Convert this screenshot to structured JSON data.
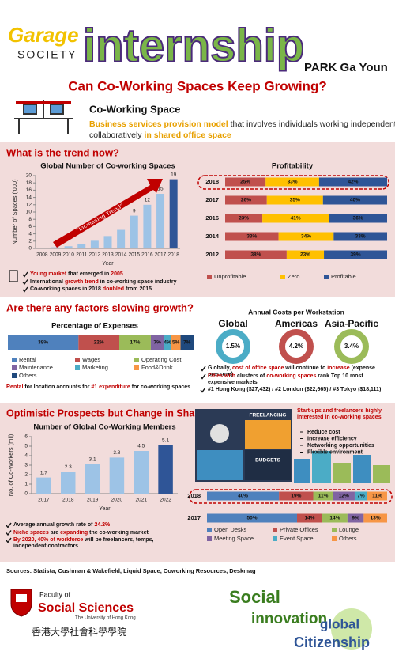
{
  "header": {
    "logo_top": "Garage",
    "logo_bottom": "SOCIETY",
    "program": "internship",
    "author": "PARK Ga Youn",
    "title": "Can Co-Working Spaces Keep Growing?"
  },
  "definition": {
    "term": "Co-Working Space",
    "parts": [
      "Business services provision model",
      " that involves individuals working independently or",
      "collaboratively ",
      "in shared office space"
    ]
  },
  "sections": [
    {
      "heading": "What is the trend now?",
      "notes": [
        [
          "Young market",
          " that emerged in ",
          "2005"
        ],
        [
          "International ",
          "growth trend",
          " in co-working space industry"
        ],
        [
          "Co-working spaces in 2018 ",
          "doubled",
          " from 2015"
        ]
      ]
    },
    {
      "heading": "Are there any factors slowing growth?",
      "note": [
        "Rental",
        " for location accounts for ",
        "#1 expenditure",
        " for co-working spaces"
      ],
      "bullets": [
        [
          "Globally, ",
          "cost of office space",
          " will continue to ",
          "increase",
          " (expense pressure)"
        ],
        [
          "Cities with",
          " clusters of ",
          "co-working spaces",
          " rank Top 10 most expensive markets"
        ],
        [
          "#1 Hong Kong ($27,432) / #2 London ($22,665) / #3 Tokyo ($18,111)"
        ]
      ]
    },
    {
      "heading": "Optimistic Prospects but Change in Shape",
      "notes": [
        [
          "Average annual growth rate of ",
          "24.2%"
        ],
        [
          "Niche spaces",
          " are ",
          "expanding",
          " the co-working market"
        ],
        [
          "By 2020, 40% of workforce",
          " will be freelancers, temps, independent contractors"
        ]
      ],
      "image_labels": [
        "FREELANCING",
        "BUDGETS"
      ],
      "interest": "Start-ups and freelancers highly interested in co-working spaces",
      "reasons": [
        "Reduce cost",
        "Increase efficiency",
        "Networking opportunities",
        "Flexible environment"
      ]
    }
  ],
  "chart_data": [
    {
      "type": "bar",
      "title": "Global Number of Co-working Spaces",
      "x_label": "Year",
      "y_label": "Number of Spaces ('000)",
      "annotation": "\"Increasing Trend\"",
      "categories": [
        "2008",
        "2009",
        "2010",
        "2011",
        "2012",
        "2013",
        "2014",
        "2015",
        "2016",
        "2017",
        "2018"
      ],
      "values": [
        0.16,
        0.3,
        0.6,
        1.1,
        2.1,
        3.4,
        5.1,
        9,
        12,
        15,
        19
      ],
      "value_labels": [
        null,
        null,
        null,
        null,
        null,
        null,
        null,
        "9",
        "12",
        "15",
        "19"
      ],
      "colors": [
        "#9dc3e6",
        "#9dc3e6",
        "#9dc3e6",
        "#9dc3e6",
        "#9dc3e6",
        "#9dc3e6",
        "#9dc3e6",
        "#9dc3e6",
        "#9dc3e6",
        "#9dc3e6",
        "#2f5597"
      ],
      "ylim": [
        0,
        20
      ],
      "yticks": [
        0,
        2,
        4,
        6,
        8,
        10,
        12,
        14,
        16,
        18,
        20
      ]
    },
    {
      "type": "stacked_bar",
      "title": "Profitability",
      "categories": [
        "2018",
        "2017",
        "2016",
        "2014",
        "2012"
      ],
      "series": [
        {
          "name": "Unprofitable",
          "color": "#c0504d",
          "values": [
            25,
            26,
            23,
            33,
            38
          ],
          "value_labels": [
            "25%",
            "26%",
            "23%",
            "33%",
            "38%"
          ]
        },
        {
          "name": "Zero",
          "color": "#ffc000",
          "values": [
            33,
            35,
            41,
            34,
            23
          ],
          "value_labels": [
            "33%",
            "35%",
            "41%",
            "34%",
            "23%"
          ]
        },
        {
          "name": "Profitable",
          "color": "#2f5597",
          "values": [
            42,
            40,
            36,
            33,
            39
          ],
          "value_labels": [
            "42%",
            "40%",
            "36%",
            "33%",
            "39%"
          ]
        }
      ]
    },
    {
      "type": "stacked_bar",
      "title": "Percentage of Expenses",
      "series": [
        {
          "name": "Rental",
          "color": "#4f81bd",
          "values": [
            38
          ],
          "value_labels": [
            "38%"
          ]
        },
        {
          "name": "Wages",
          "color": "#c0504d",
          "values": [
            22
          ],
          "value_labels": [
            "22%"
          ]
        },
        {
          "name": "Operating Cost",
          "color": "#9bbb59",
          "values": [
            17
          ],
          "value_labels": [
            "17%"
          ]
        },
        {
          "name": "Maintenance",
          "color": "#8064a2",
          "values": [
            7
          ],
          "value_labels": [
            "7%"
          ]
        },
        {
          "name": "Marketing",
          "color": "#4bacc6",
          "values": [
            4
          ],
          "value_labels": [
            "4%"
          ]
        },
        {
          "name": "Food&Drink",
          "color": "#f79646",
          "values": [
            5
          ],
          "value_labels": [
            "5%"
          ]
        },
        {
          "name": "Others",
          "color": "#1f497d",
          "values": [
            7
          ],
          "value_labels": [
            "7%"
          ]
        }
      ]
    },
    {
      "type": "donut",
      "title": "Annual Costs per Workstation",
      "categories": [
        "Global",
        "Americas",
        "Asia-Pacific"
      ],
      "values": [
        1.5,
        4.2,
        3.4
      ],
      "value_labels": [
        "1.5%",
        "4.2%",
        "3.4%"
      ],
      "colors": [
        "#4bacc6",
        "#c0504d",
        "#9bbb59"
      ]
    },
    {
      "type": "bar",
      "title": "Number of Global Co-Working Members",
      "x_label": "Year",
      "y_label": "No. of Co-Workers (mil)",
      "categories": [
        "2017",
        "2018",
        "2019",
        "2020",
        "2021",
        "2022"
      ],
      "values": [
        1.7,
        2.3,
        3.1,
        3.8,
        4.5,
        5.1
      ],
      "colors": [
        "#9dc3e6",
        "#9dc3e6",
        "#9dc3e6",
        "#9dc3e6",
        "#9dc3e6",
        "#2f5597"
      ],
      "ylim": [
        0,
        6
      ],
      "yticks": [
        0,
        1,
        2,
        3,
        4,
        5,
        6
      ]
    },
    {
      "type": "stacked_bar",
      "categories": [
        "2018",
        "2017"
      ],
      "series": [
        {
          "name": "Open Desks",
          "color": "#4f81bd",
          "values": [
            40,
            50
          ],
          "value_labels": [
            "40%",
            "50%"
          ]
        },
        {
          "name": "Private Offices",
          "color": "#c0504d",
          "values": [
            19,
            14
          ],
          "value_labels": [
            "19%",
            "14%"
          ]
        },
        {
          "name": "Lounge",
          "color": "#9bbb59",
          "values": [
            11,
            14
          ],
          "value_labels": [
            "11%",
            "14%"
          ]
        },
        {
          "name": "Meeting Space",
          "color": "#8064a2",
          "values": [
            12,
            9
          ],
          "value_labels": [
            "12%",
            "9%"
          ]
        },
        {
          "name": "Event Space",
          "color": "#4bacc6",
          "values": [
            7,
            null
          ],
          "value_labels": [
            "7%",
            null
          ]
        },
        {
          "name": "Others",
          "color": "#f79646",
          "values": [
            11,
            13
          ],
          "value_labels": [
            "11%",
            "13%"
          ]
        }
      ]
    }
  ],
  "sources": "Sources: Statista, Cushman & Wakefield, Liquid Space, Coworking Resources, Deskmag",
  "footer": {
    "faculty_of": "Faculty of",
    "faculty": "Social Sciences",
    "university": "The University of Hong Kong",
    "chinese": "香港大學社會科學學院",
    "social": "Social",
    "innovation": "innovation",
    "global": "global",
    "citizenship": "Citizenship"
  }
}
